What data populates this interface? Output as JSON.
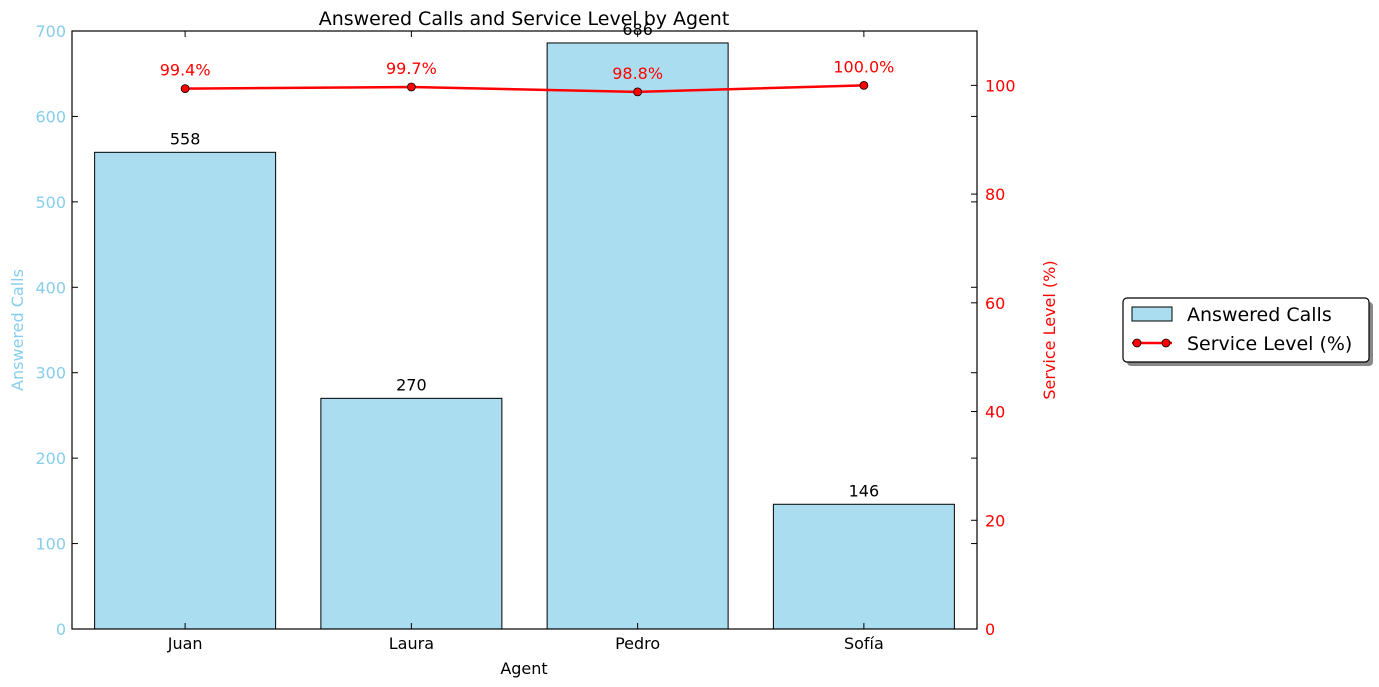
{
  "chart_data": {
    "type": "bar",
    "title": "Answered Calls and Service Level by Agent",
    "xlabel": "Agent",
    "categories": [
      "Juan",
      "Laura",
      "Pedro",
      "Sofía"
    ],
    "series": [
      {
        "name": "Answered Calls",
        "type": "bar",
        "axis": "left",
        "values": [
          558,
          270,
          686,
          146
        ],
        "labels": [
          "558",
          "270",
          "686",
          "146"
        ],
        "color": "#87ceeb"
      },
      {
        "name": "Service Level (%)",
        "type": "line",
        "axis": "right",
        "values": [
          99.4,
          99.7,
          98.8,
          100.0
        ],
        "labels": [
          "99.4%",
          "99.7%",
          "98.8%",
          "100.0%"
        ],
        "color": "#ff0000"
      }
    ],
    "y_left": {
      "label": "Answered Calls",
      "ylim": [
        0,
        700
      ],
      "ticks": [
        "0",
        "100",
        "200",
        "300",
        "400",
        "500",
        "600",
        "700"
      ],
      "color": "#87ceeb"
    },
    "y_right": {
      "label": "Service Level (%)",
      "ylim": [
        0,
        110
      ],
      "ticks": [
        "0",
        "20",
        "40",
        "60",
        "80",
        "100"
      ],
      "color": "#ff0000"
    },
    "grid": false,
    "legend": {
      "placement": "right, outside",
      "entries": [
        "Answered Calls",
        "Service Level (%)"
      ]
    }
  }
}
